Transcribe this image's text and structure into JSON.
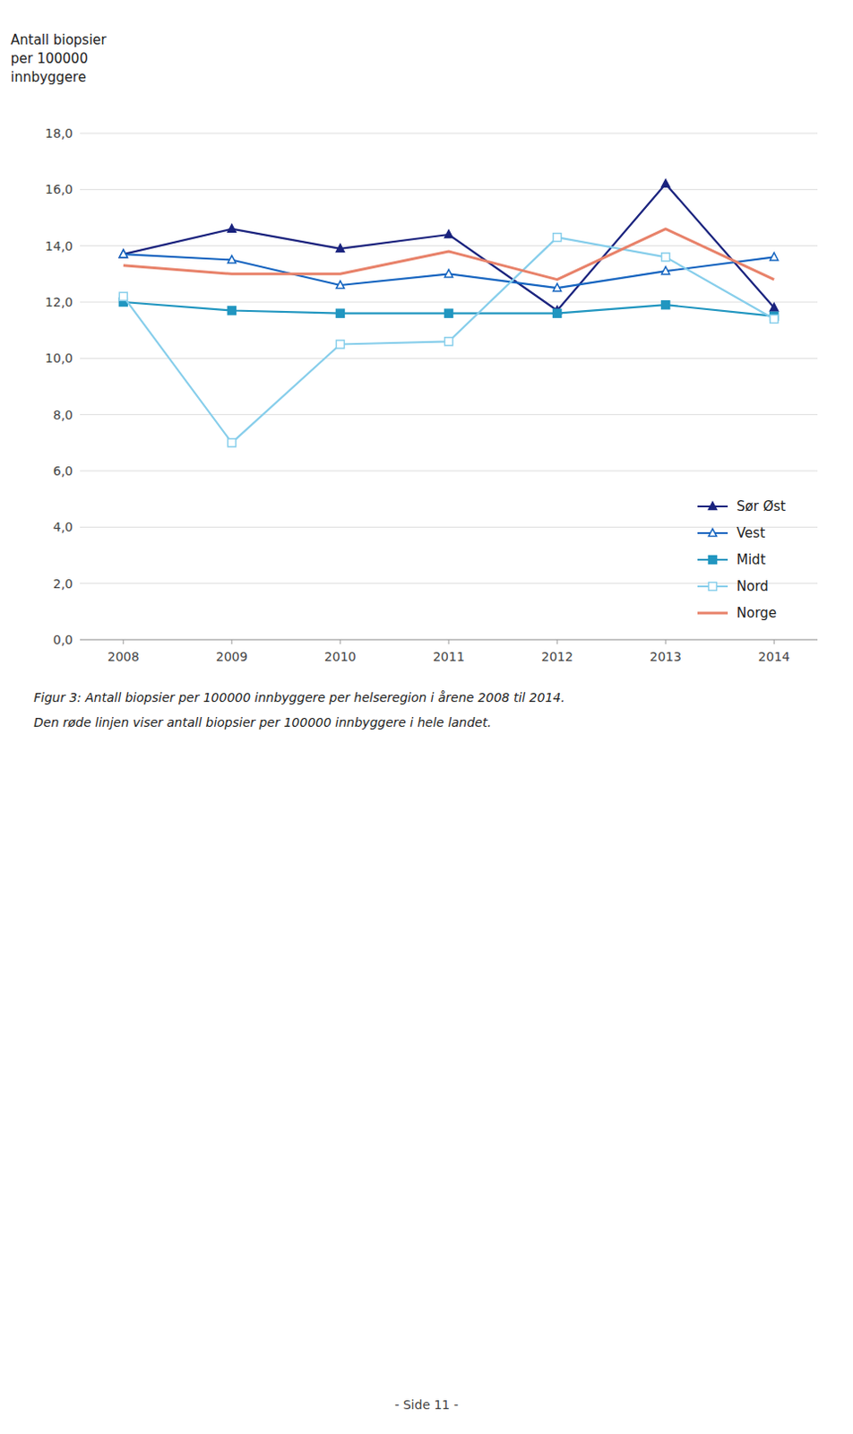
{
  "chart_data": {
    "type": "line",
    "y_label": "Antall biopsier\nper 100000\ninnbyggere",
    "x": [
      2008,
      2009,
      2010,
      2011,
      2012,
      2013,
      2014
    ],
    "xlim": [
      2007.6,
      2014.4
    ],
    "xticks": [
      2008,
      2009,
      2010,
      2011,
      2012,
      2013,
      2014
    ],
    "ylim": [
      0.0,
      18.0
    ],
    "yticks": [
      {
        "value": 0.0,
        "label": "0,0"
      },
      {
        "value": 2.0,
        "label": "2,0"
      },
      {
        "value": 4.0,
        "label": "4,0"
      },
      {
        "value": 6.0,
        "label": "6,0"
      },
      {
        "value": 8.0,
        "label": "8,0"
      },
      {
        "value": 10.0,
        "label": "10,0"
      },
      {
        "value": 12.0,
        "label": "12,0"
      },
      {
        "value": 14.0,
        "label": "14,0"
      },
      {
        "value": 16.0,
        "label": "16,0"
      },
      {
        "value": 18.0,
        "label": "18,0"
      }
    ],
    "grid": true,
    "legend": "lower right",
    "series": [
      {
        "name": "Sør Øst",
        "color": "#1A237E",
        "marker": "triangle",
        "values": [
          13.7,
          14.6,
          13.9,
          14.4,
          11.7,
          16.2,
          11.8
        ]
      },
      {
        "name": "Vest",
        "color": "#1565C0",
        "marker": "triangle-open",
        "values": [
          13.7,
          13.5,
          12.6,
          13.0,
          12.5,
          13.1,
          13.6
        ]
      },
      {
        "name": "Midt",
        "color": "#2196C0",
        "marker": "square",
        "values": [
          12.0,
          11.7,
          11.6,
          11.6,
          11.6,
          11.9,
          11.5
        ]
      },
      {
        "name": "Nord",
        "color": "#87CEEB",
        "marker": "square-open",
        "values": [
          12.2,
          7.0,
          10.5,
          10.6,
          14.3,
          13.6,
          11.4
        ]
      },
      {
        "name": "Norge",
        "color": "#E8826A",
        "marker": "none",
        "values": [
          13.3,
          13.0,
          13.0,
          13.8,
          12.8,
          14.6,
          12.8
        ]
      }
    ],
    "caption": [
      "Figur 3: Antall biopsier per 100000 innbyggere per helseregion i årene 2008 til 2014.",
      "Den røde linjen viser antall biopsier per 100000 innbyggere i hele landet."
    ],
    "footer": "- Side 11 -"
  }
}
